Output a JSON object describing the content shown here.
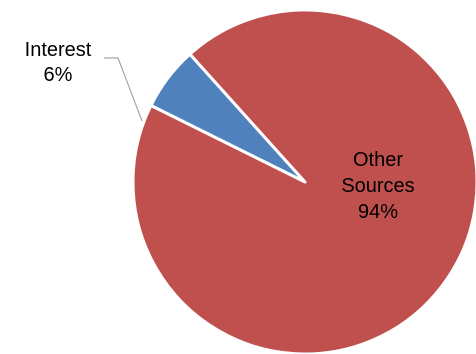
{
  "chart_data": {
    "type": "pie",
    "slices": [
      {
        "label": "Interest",
        "label_lines": [
          "Interest",
          "6%"
        ],
        "value": 6,
        "color": "#4F81BD"
      },
      {
        "label": "Other Sources",
        "label_lines": [
          "Other",
          "Sources",
          "94%"
        ],
        "value": 94,
        "color": "#C0504D"
      }
    ],
    "legend": "none"
  }
}
